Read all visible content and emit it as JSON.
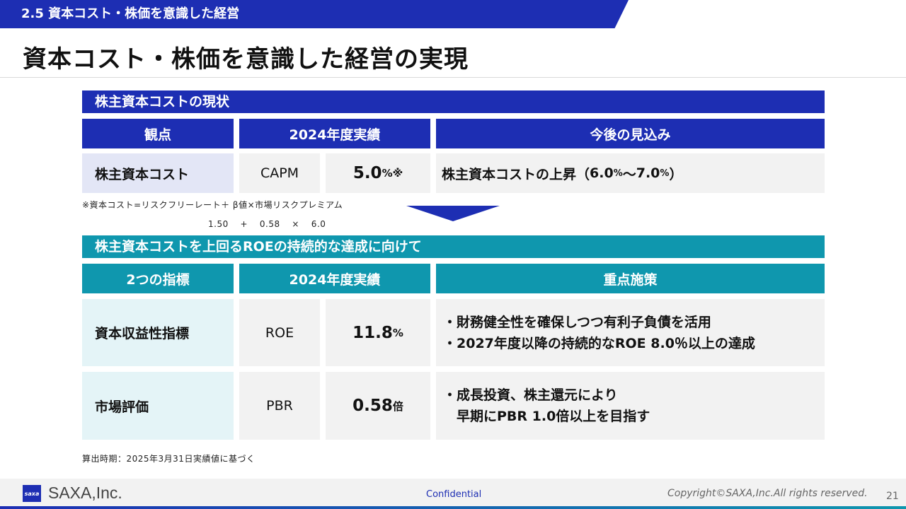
{
  "header": {
    "section": "2.5 資本コスト・株価を意識した経営",
    "title": "資本コスト・株価を意識した経営の実現"
  },
  "table1": {
    "bar": "株主資本コストの現状",
    "headers": [
      "観点",
      "2024年度実績",
      "今後の見込み"
    ],
    "row": {
      "label": "株主資本コスト",
      "metric": "CAPM",
      "value": "5.0",
      "value_unit": "%※",
      "outlook_prefix": "株主資本コストの上昇（",
      "outlook_low": "6.0",
      "outlook_low_unit": "%",
      "outlook_sep": "〜",
      "outlook_high": "7.0",
      "outlook_high_unit": "%",
      "outlook_suffix": "）"
    },
    "note1": "※資本コスト=リスクフリーレート＋ β値×市場リスクプレミアム",
    "note2": "1.50　 + 　0.58　 × 　6.0"
  },
  "table2": {
    "bar": "株主資本コストを上回るROEの持続的な達成に向けて",
    "headers": [
      "2つの指標",
      "2024年度実績",
      "重点施策"
    ],
    "rows": [
      {
        "label": "資本収益性指標",
        "metric": "ROE",
        "value": "11.8",
        "unit": "%",
        "measures": [
          "・財務健全性を確保しつつ有利子負債を活用",
          "・2027年度以降の持続的なROE 8.0％以上の達成"
        ]
      },
      {
        "label": "市場評価",
        "metric": "PBR",
        "value": "0.58",
        "unit": "倍",
        "measures": [
          "・成長投資、株主還元により",
          "　早期にPBR 1.0倍以上を目指す"
        ]
      }
    ],
    "footnote": "算出時期：2025年3月31日実績値に基づく"
  },
  "footer": {
    "logo_mark": "saxa",
    "company": "SAXA,Inc.",
    "confidential": "Confidential",
    "copyright": "Copyright©SAXA,Inc.All rights reserved.",
    "page": "21"
  },
  "colors": {
    "blue": "#1d2eb3",
    "teal": "#0f97ae"
  }
}
